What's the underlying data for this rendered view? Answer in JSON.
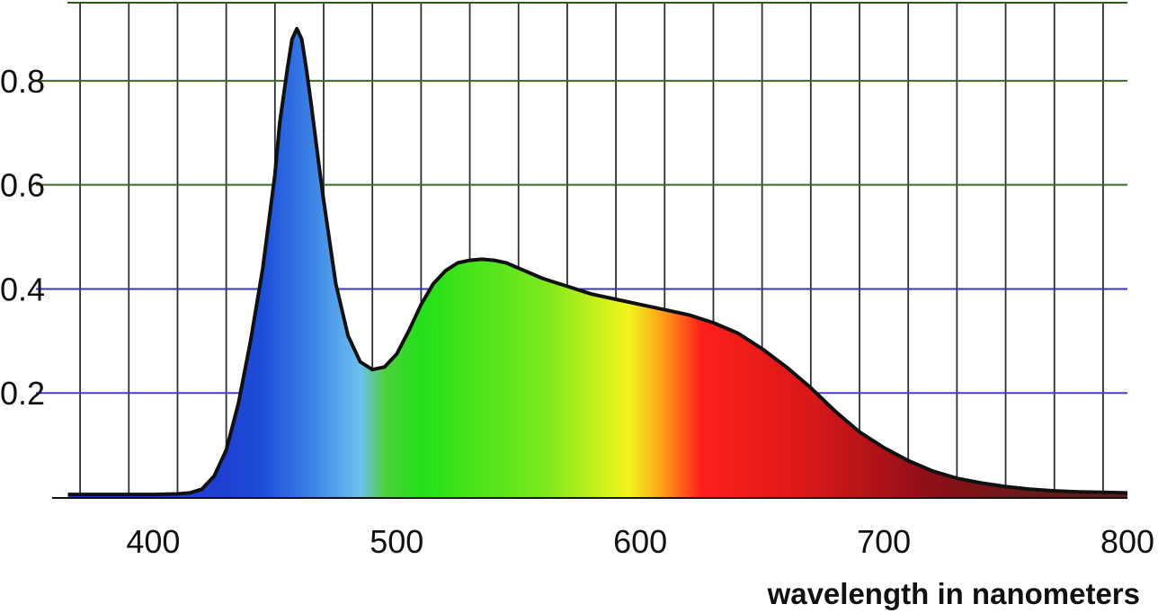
{
  "chart_data": {
    "type": "area",
    "title": "",
    "xlabel": "wavelength in nanometers",
    "ylabel": "",
    "xlim": [
      360,
      800
    ],
    "ylim": [
      0,
      0.93
    ],
    "grid": true,
    "x_ticks": [
      400,
      500,
      600,
      700,
      800
    ],
    "x_tick_labels": [
      "400",
      "500",
      "600",
      "700",
      "800"
    ],
    "y_ticks": [
      0.2,
      0.4,
      0.6,
      0.8
    ],
    "y_tick_labels": [
      "0.2",
      "0.4",
      "0.6",
      "0.8"
    ],
    "fill": "visible-spectrum-gradient",
    "line_color": "#111111",
    "series": [
      {
        "x": [
          365,
          380,
          400,
          410,
          415,
          420,
          425,
          430,
          435,
          440,
          445,
          450,
          452,
          455,
          457,
          459,
          461,
          463,
          465,
          468,
          470,
          475,
          480,
          485,
          490,
          495,
          500,
          505,
          510,
          515,
          520,
          525,
          530,
          535,
          540,
          545,
          550,
          560,
          570,
          580,
          590,
          600,
          610,
          620,
          630,
          640,
          650,
          660,
          670,
          680,
          690,
          700,
          710,
          720,
          730,
          740,
          750,
          760,
          770,
          780,
          790,
          800
        ],
        "y": [
          0.005,
          0.005,
          0.005,
          0.006,
          0.008,
          0.015,
          0.04,
          0.09,
          0.18,
          0.3,
          0.44,
          0.62,
          0.72,
          0.82,
          0.88,
          0.9,
          0.88,
          0.82,
          0.75,
          0.64,
          0.57,
          0.41,
          0.31,
          0.26,
          0.245,
          0.25,
          0.275,
          0.32,
          0.37,
          0.41,
          0.435,
          0.45,
          0.455,
          0.457,
          0.455,
          0.45,
          0.44,
          0.42,
          0.405,
          0.39,
          0.38,
          0.37,
          0.36,
          0.35,
          0.335,
          0.315,
          0.285,
          0.25,
          0.21,
          0.165,
          0.125,
          0.095,
          0.07,
          0.05,
          0.036,
          0.027,
          0.02,
          0.015,
          0.012,
          0.01,
          0.009,
          0.008
        ]
      }
    ]
  }
}
